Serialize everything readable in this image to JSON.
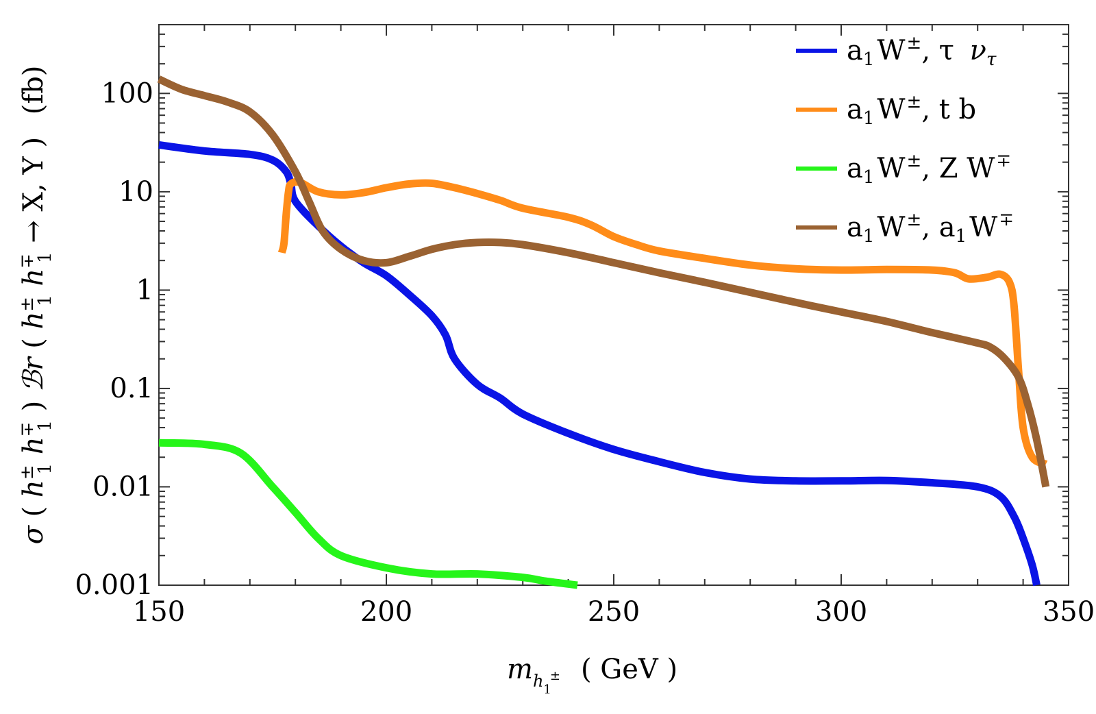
{
  "chart_data": {
    "type": "line",
    "title": "",
    "xlabel": "m_{h1±} (GeV)",
    "xlabel_parts": {
      "main": "m",
      "sub": "h",
      "subsub": "1",
      "supsup": "±",
      "unit": "( GeV )"
    },
    "ylabel": "σ ( h1± h1∓ ) ℬr( h1± h1∓ → X, Y )   (fb)",
    "ylabel_parts": {
      "sigma": "σ",
      "br": "ℬr",
      "h": "h",
      "sub1": "1",
      "pm": "±",
      "mp": "∓",
      "arrow": "→",
      "xy": "X, Y )",
      "unit": "(fb)"
    },
    "xlim": [
      150,
      350
    ],
    "ylim": [
      0.001,
      500
    ],
    "yscale": "log",
    "x_ticks": [
      150,
      200,
      250,
      300,
      350
    ],
    "x_tick_labels": [
      "150",
      "200",
      "250",
      "300",
      "350"
    ],
    "y_ticks": [
      0.001,
      0.01,
      0.1,
      1,
      10,
      100
    ],
    "y_tick_labels": [
      "0.001",
      "0.01",
      "0.1",
      "1",
      "10",
      "100"
    ],
    "legend_position": "top-right",
    "series": [
      {
        "name": "a1 W±, τ ντ",
        "legend": {
          "a": "a",
          "sub": "1",
          "w": "W",
          "sup": "±",
          "rest": ", τ ",
          "rest2": "ν",
          "rest2sub": "τ"
        },
        "color": "#0a14e6",
        "points": [
          [
            150,
            30
          ],
          [
            160,
            26
          ],
          [
            170,
            24
          ],
          [
            175,
            21
          ],
          [
            178,
            16
          ],
          [
            179,
            12
          ],
          [
            180,
            8
          ],
          [
            185,
            4.5
          ],
          [
            190,
            2.8
          ],
          [
            195,
            1.9
          ],
          [
            200,
            1.4
          ],
          [
            205,
            0.9
          ],
          [
            210,
            0.55
          ],
          [
            213,
            0.35
          ],
          [
            215,
            0.2
          ],
          [
            220,
            0.11
          ],
          [
            225,
            0.08
          ],
          [
            230,
            0.055
          ],
          [
            240,
            0.035
          ],
          [
            250,
            0.024
          ],
          [
            260,
            0.018
          ],
          [
            270,
            0.014
          ],
          [
            280,
            0.012
          ],
          [
            290,
            0.0115
          ],
          [
            300,
            0.0115
          ],
          [
            310,
            0.0116
          ],
          [
            320,
            0.011
          ],
          [
            330,
            0.01
          ],
          [
            335,
            0.008
          ],
          [
            338,
            0.005
          ],
          [
            340,
            0.003
          ],
          [
            342,
            0.0016
          ],
          [
            343,
            0.001
          ]
        ]
      },
      {
        "name": "a1 W±, t b",
        "legend": {
          "a": "a",
          "sub": "1",
          "w": "W",
          "sup": "±",
          "rest": ", t  b",
          "rest2": "",
          "rest2sub": ""
        },
        "color": "#ff8c19",
        "points": [
          [
            177,
            2.4
          ],
          [
            177.5,
            3
          ],
          [
            178,
            6
          ],
          [
            178.5,
            10
          ],
          [
            179,
            12
          ],
          [
            181,
            12.5
          ],
          [
            185,
            10
          ],
          [
            190,
            9.3
          ],
          [
            195,
            9.8
          ],
          [
            200,
            11
          ],
          [
            205,
            12
          ],
          [
            210,
            12.2
          ],
          [
            215,
            11
          ],
          [
            220,
            9.6
          ],
          [
            225,
            8.2
          ],
          [
            230,
            6.8
          ],
          [
            240,
            5.5
          ],
          [
            245,
            4.6
          ],
          [
            250,
            3.5
          ],
          [
            255,
            2.9
          ],
          [
            260,
            2.5
          ],
          [
            270,
            2.1
          ],
          [
            280,
            1.8
          ],
          [
            290,
            1.65
          ],
          [
            300,
            1.6
          ],
          [
            310,
            1.62
          ],
          [
            320,
            1.6
          ],
          [
            325,
            1.5
          ],
          [
            328,
            1.3
          ],
          [
            332,
            1.35
          ],
          [
            335,
            1.45
          ],
          [
            337,
            1.2
          ],
          [
            338,
            0.7
          ],
          [
            339,
            0.15
          ],
          [
            340,
            0.04
          ],
          [
            342,
            0.02
          ],
          [
            345,
            0.017
          ]
        ]
      },
      {
        "name": "a1 W±, Z W∓",
        "legend": {
          "a": "a",
          "sub": "1",
          "w": "W",
          "sup": "±",
          "rest": ", Z  W",
          "rest2": "∓",
          "rest2sub": ""
        },
        "color": "#26f51a",
        "points": [
          [
            150,
            0.028
          ],
          [
            160,
            0.027
          ],
          [
            168,
            0.022
          ],
          [
            175,
            0.01
          ],
          [
            180,
            0.0055
          ],
          [
            185,
            0.003
          ],
          [
            190,
            0.002
          ],
          [
            200,
            0.0015
          ],
          [
            210,
            0.0013
          ],
          [
            220,
            0.0013
          ],
          [
            230,
            0.0012
          ],
          [
            235,
            0.0011
          ],
          [
            242,
            0.001
          ]
        ]
      },
      {
        "name": "a1 W±, a1 W∓",
        "legend": {
          "a": "a",
          "sub": "1",
          "w": "W",
          "sup": "±",
          "rest": ", a",
          "rest2": "W",
          "rest2sub": "1"
        },
        "color": "#9a6232",
        "points": [
          [
            150,
            140
          ],
          [
            155,
            110
          ],
          [
            160,
            95
          ],
          [
            165,
            82
          ],
          [
            170,
            65
          ],
          [
            175,
            38
          ],
          [
            180,
            16
          ],
          [
            183,
            8
          ],
          [
            186,
            4
          ],
          [
            190,
            2.6
          ],
          [
            195,
            2
          ],
          [
            200,
            1.9
          ],
          [
            205,
            2.2
          ],
          [
            210,
            2.6
          ],
          [
            215,
            2.9
          ],
          [
            220,
            3.05
          ],
          [
            225,
            3.05
          ],
          [
            230,
            2.9
          ],
          [
            240,
            2.4
          ],
          [
            250,
            1.9
          ],
          [
            260,
            1.5
          ],
          [
            270,
            1.2
          ],
          [
            280,
            0.95
          ],
          [
            290,
            0.75
          ],
          [
            300,
            0.6
          ],
          [
            310,
            0.48
          ],
          [
            320,
            0.37
          ],
          [
            330,
            0.29
          ],
          [
            333,
            0.26
          ],
          [
            336,
            0.2
          ],
          [
            339,
            0.13
          ],
          [
            341,
            0.07
          ],
          [
            343,
            0.03
          ],
          [
            345,
            0.01
          ]
        ]
      }
    ]
  }
}
